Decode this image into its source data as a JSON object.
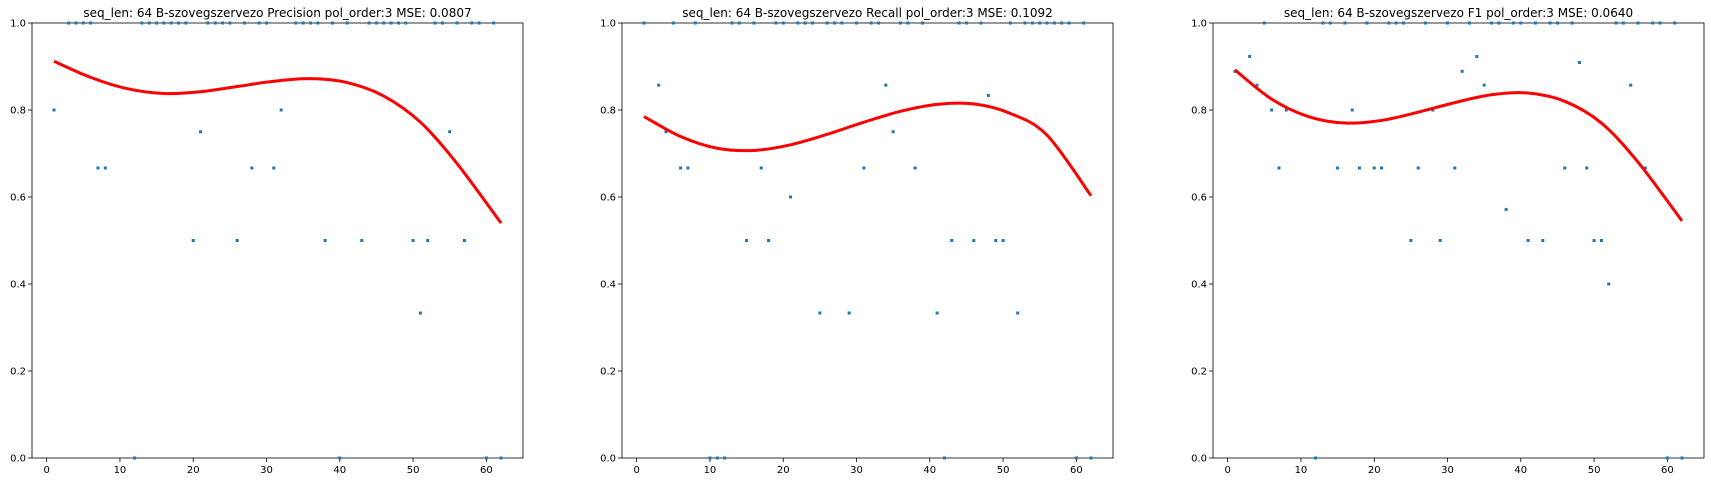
{
  "chart_data": [
    {
      "type": "scatter",
      "title": "seq_len: 64    B-szovegszervezo   Precision   pol_order:3   MSE: 0.0807",
      "xlim": [
        -2,
        65
      ],
      "ylim": [
        0,
        1
      ],
      "xticks": [
        0,
        10,
        20,
        30,
        40,
        50,
        60
      ],
      "yticks": [
        0.0,
        0.2,
        0.4,
        0.6,
        0.8,
        1.0
      ],
      "grid": false,
      "series": [
        {
          "x": [
            1,
            3,
            4,
            5,
            6,
            7,
            8,
            12,
            13,
            14,
            15,
            16,
            17,
            18,
            19,
            20,
            21,
            22,
            23,
            24,
            25,
            26,
            27,
            28,
            29,
            30,
            31,
            32,
            34,
            35,
            36,
            37,
            38,
            39,
            40,
            41,
            43,
            44,
            45,
            46,
            47,
            48,
            49,
            50,
            51,
            52,
            53,
            54,
            55,
            56,
            57,
            58,
            59,
            60,
            61,
            62
          ],
          "y": [
            0.8,
            1.0,
            1.0,
            1.0,
            1.0,
            0.6667,
            0.6667,
            0.0,
            1.0,
            1.0,
            1.0,
            1.0,
            1.0,
            1.0,
            1.0,
            0.5,
            0.75,
            1.0,
            1.0,
            1.0,
            1.0,
            0.5,
            1.0,
            0.6667,
            1.0,
            1.0,
            0.6667,
            0.8,
            1.0,
            1.0,
            1.0,
            1.0,
            0.5,
            1.0,
            0.0,
            1.0,
            0.5,
            1.0,
            1.0,
            1.0,
            1.0,
            1.0,
            1.0,
            0.5,
            0.3333,
            0.5,
            1.0,
            1.0,
            0.75,
            1.0,
            0.5,
            1.0,
            1.0,
            0.0,
            1.0,
            0.0
          ]
        }
      ],
      "fit": {
        "x": [
          1,
          6,
          11,
          16,
          21,
          26,
          31,
          36,
          41,
          46,
          51,
          56,
          62
        ],
        "y": [
          0.912,
          0.875,
          0.849,
          0.838,
          0.842,
          0.854,
          0.866,
          0.872,
          0.863,
          0.832,
          0.772,
          0.677,
          0.54
        ]
      }
    },
    {
      "type": "scatter",
      "title": "seq_len: 64    B-szovegszervezo   Recall   pol_order:3   MSE: 0.1092",
      "xlim": [
        -2,
        65
      ],
      "ylim": [
        0,
        1
      ],
      "xticks": [
        0,
        10,
        20,
        30,
        40,
        50,
        60
      ],
      "yticks": [
        0.0,
        0.2,
        0.4,
        0.6,
        0.8,
        1.0
      ],
      "grid": false,
      "series": [
        {
          "x": [
            1,
            3,
            4,
            5,
            6,
            7,
            8,
            10,
            11,
            12,
            13,
            14,
            15,
            16,
            17,
            18,
            19,
            20,
            21,
            22,
            23,
            24,
            25,
            26,
            27,
            28,
            29,
            30,
            31,
            32,
            33,
            34,
            35,
            36,
            37,
            38,
            39,
            41,
            42,
            43,
            44,
            45,
            46,
            47,
            48,
            49,
            50,
            51,
            52,
            53,
            54,
            55,
            56,
            57,
            58,
            59,
            60,
            61,
            62
          ],
          "y": [
            1.0,
            0.8571,
            0.75,
            1.0,
            0.6667,
            0.6667,
            1.0,
            0.0,
            0.0,
            0.0,
            1.0,
            1.0,
            0.5,
            1.0,
            0.6667,
            0.5,
            1.0,
            1.0,
            0.6,
            1.0,
            1.0,
            1.0,
            0.3333,
            1.0,
            1.0,
            1.0,
            0.3333,
            1.0,
            0.6667,
            1.0,
            1.0,
            0.8571,
            0.75,
            1.0,
            1.0,
            0.6667,
            1.0,
            0.3333,
            0.0,
            0.5,
            1.0,
            1.0,
            0.5,
            1.0,
            0.8333,
            0.5,
            0.5,
            1.0,
            0.3333,
            1.0,
            1.0,
            1.0,
            1.0,
            1.0,
            1.0,
            1.0,
            0.0,
            1.0,
            0.0
          ]
        }
      ],
      "fit": {
        "x": [
          1,
          6,
          11,
          16,
          21,
          26,
          31,
          36,
          41,
          46,
          51,
          56,
          62
        ],
        "y": [
          0.785,
          0.739,
          0.712,
          0.707,
          0.72,
          0.744,
          0.772,
          0.797,
          0.813,
          0.814,
          0.792,
          0.742,
          0.603
        ]
      }
    },
    {
      "type": "scatter",
      "title": "seq_len: 64    B-szovegszervezo   F1   pol_order:3   MSE: 0.0640",
      "xlim": [
        -2,
        65
      ],
      "ylim": [
        0,
        1
      ],
      "xticks": [
        0,
        10,
        20,
        30,
        40,
        50,
        60
      ],
      "yticks": [
        0.0,
        0.2,
        0.4,
        0.6,
        0.8,
        1.0
      ],
      "grid": false,
      "series": [
        {
          "x": [
            1,
            3,
            4,
            5,
            6,
            7,
            8,
            12,
            13,
            14,
            15,
            16,
            17,
            18,
            19,
            20,
            21,
            22,
            23,
            24,
            25,
            26,
            27,
            28,
            29,
            30,
            31,
            32,
            33,
            34,
            35,
            36,
            37,
            38,
            39,
            40,
            41,
            42,
            43,
            44,
            45,
            46,
            47,
            48,
            49,
            50,
            51,
            52,
            53,
            54,
            55,
            56,
            57,
            58,
            59,
            60,
            61,
            62
          ],
          "y": [
            0.8889,
            0.9231,
            0.8571,
            1.0,
            0.8,
            0.6667,
            0.8,
            0.0,
            1.0,
            1.0,
            0.6667,
            1.0,
            0.8,
            0.6667,
            1.0,
            0.6667,
            0.6667,
            1.0,
            1.0,
            1.0,
            0.5,
            0.6667,
            1.0,
            0.8,
            0.5,
            1.0,
            0.6667,
            0.8889,
            1.0,
            0.9231,
            0.8571,
            1.0,
            1.0,
            0.5714,
            1.0,
            1.0,
            0.5,
            1.0,
            0.5,
            1.0,
            1.0,
            0.6667,
            1.0,
            0.9091,
            0.6667,
            0.5,
            0.5,
            0.4,
            1.0,
            1.0,
            0.8571,
            1.0,
            0.6667,
            1.0,
            1.0,
            0.0,
            1.0,
            0.0
          ]
        }
      ],
      "fit": {
        "x": [
          1,
          6,
          11,
          16,
          21,
          26,
          31,
          36,
          41,
          46,
          51,
          56,
          62
        ],
        "y": [
          0.892,
          0.825,
          0.785,
          0.77,
          0.776,
          0.795,
          0.817,
          0.835,
          0.839,
          0.82,
          0.77,
          0.68,
          0.545
        ]
      }
    }
  ]
}
